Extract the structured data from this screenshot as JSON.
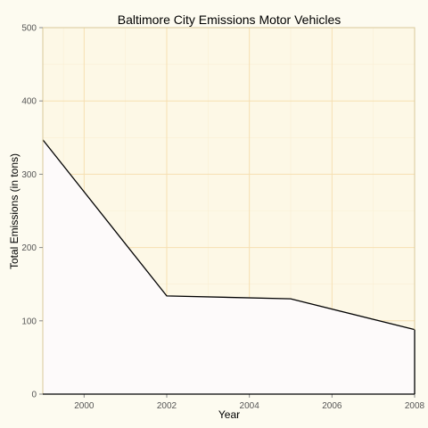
{
  "chart_data": {
    "type": "area",
    "title": "Baltimore City Emissions Motor Vehicles",
    "xlabel": "Year",
    "ylabel": "Total Emissions (in tons)",
    "x": [
      1999,
      2002,
      2005,
      2008
    ],
    "series": [
      {
        "values": [
          347,
          134,
          130,
          88
        ]
      }
    ],
    "xlim": [
      1999,
      2008
    ],
    "ylim": [
      0,
      500
    ],
    "xticks": [
      "2000",
      "2002",
      "2004",
      "2006",
      "2008"
    ],
    "yticks": [
      "0",
      "100",
      "200",
      "300",
      "400",
      "500"
    ],
    "grid": true,
    "legend": "none",
    "colors": {
      "background": "#fdfbf0",
      "panel": "#fdf8e6",
      "grid_major": "#f6dfb2",
      "grid_minor": "#faefd4",
      "area_fill": "#fdfafa",
      "line": "#000000",
      "border": "#d9c89a"
    }
  }
}
